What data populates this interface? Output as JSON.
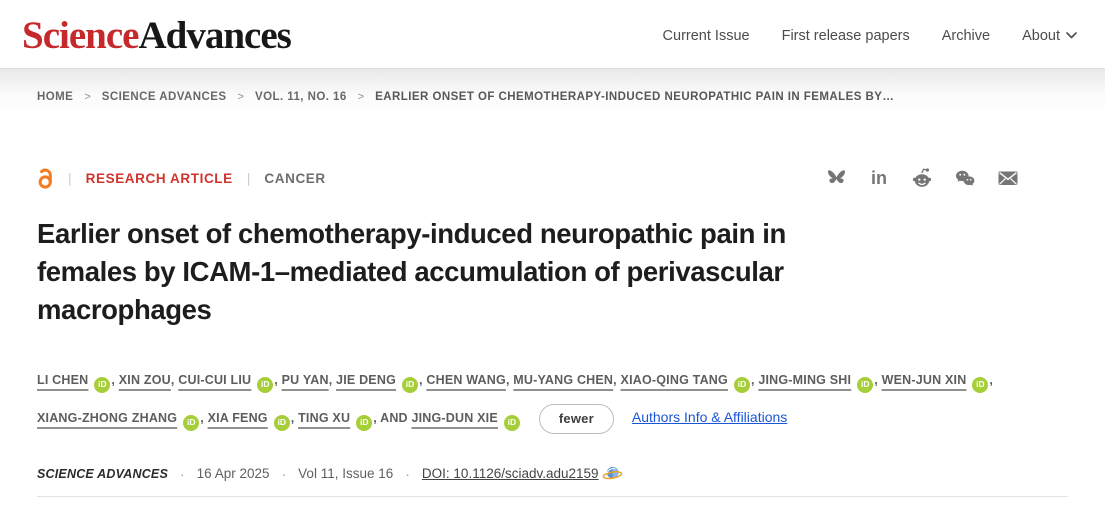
{
  "brand": {
    "logo_part1": "Science",
    "logo_part2": "Advances"
  },
  "nav": {
    "items": [
      "Current Issue",
      "First release papers",
      "Archive",
      "About"
    ]
  },
  "breadcrumb": {
    "separator": ">",
    "items": [
      "HOME",
      "SCIENCE ADVANCES",
      "VOL. 11, NO. 16"
    ],
    "current": "EARLIER ONSET OF CHEMOTHERAPY-INDUCED NEUROPATHIC PAIN IN FEMALES BY…"
  },
  "article": {
    "divider_glyph": "|",
    "type_label": "RESEARCH ARTICLE",
    "subject_label": "CANCER",
    "title": "Earlier onset of chemotherapy-induced neuropathic pain in females by ICAM-1–mediated accumulation of perivascular macrophages",
    "authors": [
      {
        "name": "LI CHEN",
        "orcid": true
      },
      {
        "name": "XIN ZOU",
        "orcid": false
      },
      {
        "name": "CUI-CUI LIU",
        "orcid": true
      },
      {
        "name": "PU YAN",
        "orcid": false
      },
      {
        "name": "JIE DENG",
        "orcid": true
      },
      {
        "name": "CHEN WANG",
        "orcid": false
      },
      {
        "name": "MU-YANG CHEN",
        "orcid": false
      },
      {
        "name": "XIAO-QING TANG",
        "orcid": true
      },
      {
        "name": "JING-MING SHI",
        "orcid": true
      },
      {
        "name": "WEN-JUN XIN",
        "orcid": true
      },
      {
        "name": "XIANG-ZHONG ZHANG",
        "orcid": true
      },
      {
        "name": "XIA FENG",
        "orcid": true
      },
      {
        "name": "TING XU",
        "orcid": true
      },
      {
        "name": "JING-DUN XIE",
        "orcid": true
      }
    ],
    "and_label": "AND",
    "orcid_badge_text": "iD",
    "fewer_button": "fewer",
    "authors_info_link": "Authors Info & Affiliations",
    "meta": {
      "journal": "SCIENCE ADVANCES",
      "bullet": "·",
      "date": "16 Apr 2025",
      "issue": "Vol 11, Issue 16",
      "doi": "DOI: 10.1126/sciadv.adu2159"
    }
  },
  "share": {
    "icons": [
      "bluesky",
      "linkedin",
      "reddit",
      "wechat",
      "email"
    ]
  },
  "colors": {
    "logo_red": "#c5292b",
    "type_red": "#d0342c",
    "orcid_green": "#a6ce39",
    "link_blue": "#1a56d6",
    "open_access_orange": "#f47b20"
  }
}
